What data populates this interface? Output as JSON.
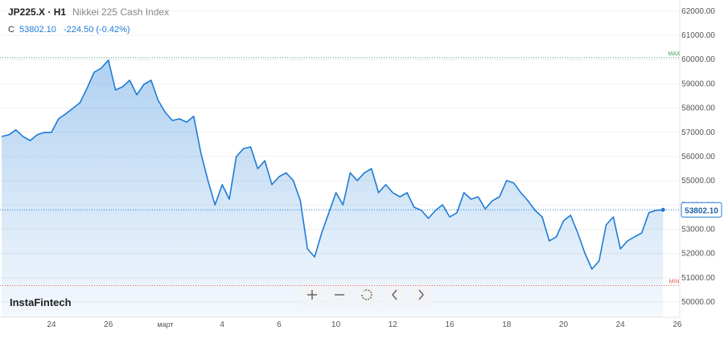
{
  "header": {
    "symbol": "JP225.X · H1",
    "name": "Nikkei 225 Cash Index",
    "close_prefix": "C",
    "close": "53802.10",
    "change": "-224.50 (-0.42%)",
    "brand": "InstaFintech"
  },
  "chart_data": {
    "type": "area",
    "color": "#1e7bd6",
    "categories": [
      null,
      null,
      null,
      null,
      null,
      null,
      null,
      "24",
      null,
      null,
      null,
      null,
      null,
      null,
      null,
      "26",
      null,
      null,
      null,
      null,
      null,
      null,
      null,
      "март",
      null,
      null,
      null,
      null,
      null,
      null,
      null,
      "4",
      null,
      null,
      null,
      null,
      null,
      null,
      null,
      "6",
      null,
      null,
      null,
      null,
      null,
      null,
      null,
      "10",
      null,
      null,
      null,
      null,
      null,
      null,
      null,
      "12",
      null,
      null,
      null,
      null,
      null,
      null,
      null,
      "16",
      null,
      null,
      null,
      null,
      null,
      null,
      null,
      "18",
      null,
      null,
      null,
      null,
      null,
      null,
      null,
      "20",
      null,
      null,
      null,
      null,
      null,
      null,
      null,
      "24",
      null,
      null,
      null,
      null,
      null,
      null,
      null,
      "26"
    ],
    "series": [
      {
        "name": "JP225.X",
        "color": "#1e7bd6",
        "values": [
          56830,
          56900,
          57100,
          56830,
          56660,
          56900,
          57000,
          57000,
          57560,
          57760,
          57990,
          58220,
          58820,
          59480,
          59650,
          59980,
          58750,
          58880,
          59150,
          58550,
          58980,
          59150,
          58320,
          57820,
          57490,
          57560,
          57420,
          57660,
          56170,
          55010,
          54010,
          54840,
          54240,
          56000,
          56330,
          56400,
          55500,
          55830,
          54840,
          55170,
          55330,
          55010,
          54180,
          52190,
          51860,
          52850,
          53680,
          54510,
          54010,
          55330,
          55010,
          55330,
          55500,
          54510,
          54840,
          54510,
          54340,
          54510,
          53910,
          53780,
          53450,
          53780,
          54010,
          53510,
          53680,
          54510,
          54240,
          54340,
          53840,
          54180,
          54340,
          55010,
          54910,
          54510,
          54180,
          53780,
          53510,
          52520,
          52690,
          53350,
          53580,
          52850,
          52020,
          51360,
          51690,
          53180,
          53510,
          52190,
          52520,
          52690,
          52850,
          53680,
          53780,
          53802.1,
          null,
          null
        ]
      }
    ],
    "ylim": [
      49370,
      62460
    ],
    "yticks": [
      {
        "value": 50000,
        "label": "50000.00"
      },
      {
        "value": 51000,
        "label": "51000.00"
      },
      {
        "value": 52000,
        "label": "52000.00"
      },
      {
        "value": 53000,
        "label": "53000.00"
      },
      {
        "value": 54000,
        "label": "54000.00"
      },
      {
        "value": 55000,
        "label": "55000.00"
      },
      {
        "value": 56000,
        "label": "56000.00"
      },
      {
        "value": 57000,
        "label": "57000.00"
      },
      {
        "value": 58000,
        "label": "58000.00"
      },
      {
        "value": 59000,
        "label": "59000.00"
      },
      {
        "value": 60000,
        "label": "60000.00"
      },
      {
        "value": 61000,
        "label": "61000.00"
      },
      {
        "value": 62000,
        "label": "62000.00"
      }
    ],
    "max_line": {
      "value": 60080,
      "label": "MAX",
      "color": "#3aa55a"
    },
    "min_line": {
      "value": 50680,
      "label": "MIN",
      "color": "#e06060"
    },
    "last_price": {
      "value": 53802.1,
      "label": "53802.10"
    },
    "grid": true
  }
}
